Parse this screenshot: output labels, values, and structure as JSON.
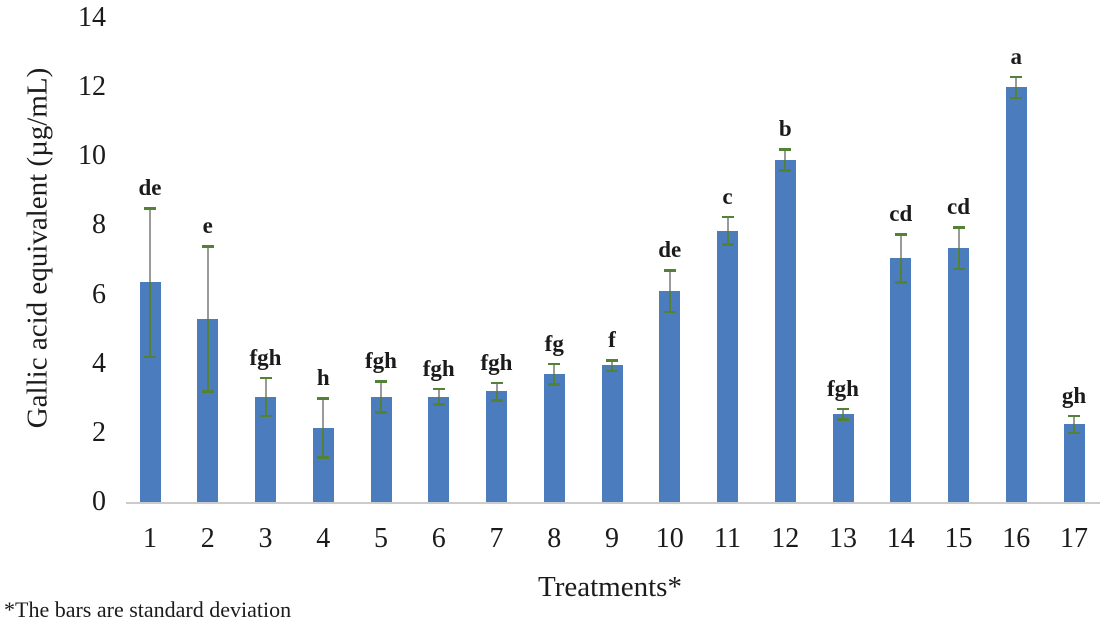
{
  "chart_data": {
    "type": "bar",
    "title": "",
    "xlabel": "Treatments*",
    "ylabel": "Gallic acid equivalent (µg/mL)",
    "footnote": "*The bars are standard deviation",
    "categories": [
      "1",
      "2",
      "3",
      "4",
      "5",
      "6",
      "7",
      "8",
      "9",
      "10",
      "11",
      "12",
      "13",
      "14",
      "15",
      "16",
      "17"
    ],
    "values": [
      6.35,
      5.3,
      3.05,
      2.15,
      3.05,
      3.05,
      3.2,
      3.7,
      3.95,
      6.1,
      7.85,
      9.9,
      2.55,
      7.05,
      7.35,
      12.0,
      2.25
    ],
    "errors": [
      2.15,
      2.1,
      0.55,
      0.85,
      0.45,
      0.22,
      0.25,
      0.3,
      0.15,
      0.6,
      0.4,
      0.3,
      0.15,
      0.7,
      0.6,
      0.3,
      0.25
    ],
    "sig_letters": [
      "de",
      "e",
      "fgh",
      "h",
      "fgh",
      "fgh",
      "fgh",
      "fg",
      "f",
      "de",
      "c",
      "b",
      "fgh",
      "cd",
      "cd",
      "a",
      "gh"
    ],
    "ylim": [
      0,
      14
    ],
    "yticks": [
      0,
      2,
      4,
      6,
      8,
      10,
      12,
      14
    ],
    "grid": "off",
    "legend": "none",
    "error_bar_style": "sd, green caps with gray stem",
    "colors": {
      "bar": "#4a7cbe",
      "error_cap": "#538135",
      "error_line_upper": "#9a9a9a",
      "error_line_lower": "#538135",
      "axis_line": "#cbcbcb",
      "text": "#1b1b1b"
    }
  }
}
